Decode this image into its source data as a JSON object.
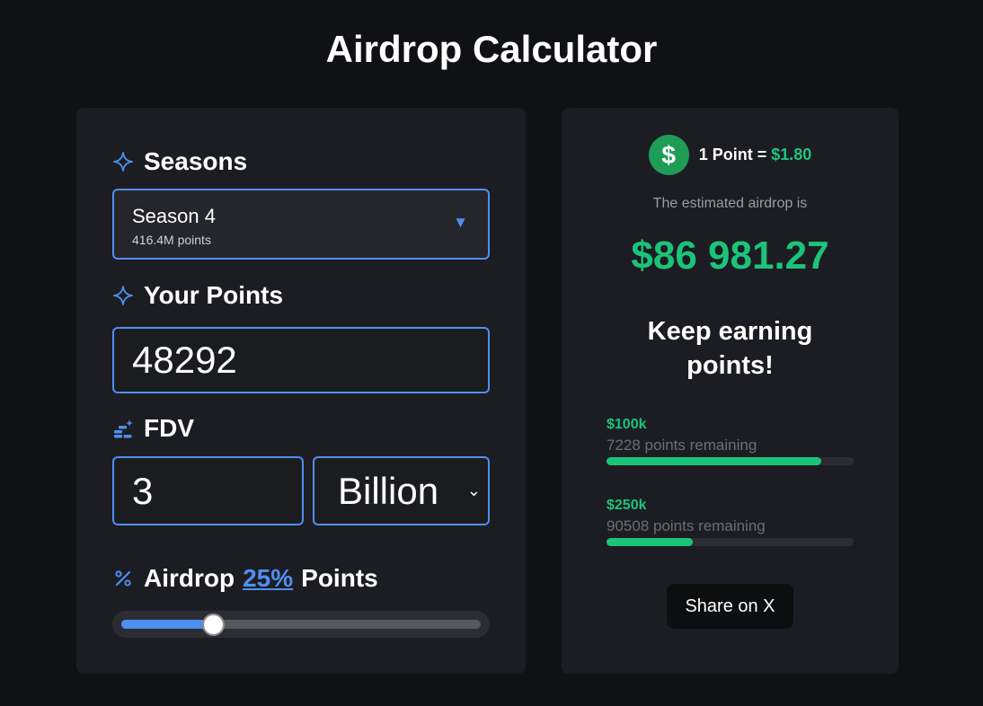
{
  "page": {
    "title": "Airdrop Calculator"
  },
  "calculator": {
    "seasons": {
      "label": "Seasons",
      "selected_name": "Season 4",
      "selected_points": "416.4M points"
    },
    "your_points": {
      "label": "Your Points",
      "value": "48292"
    },
    "fdv": {
      "label": "FDV",
      "value": "3",
      "unit": "Billion"
    },
    "airdrop": {
      "label_prefix": "Airdrop",
      "percent": "25%",
      "label_suffix": "Points",
      "percent_value": 25
    }
  },
  "result": {
    "currency_symbol": "$",
    "rate_label": "1 Point =",
    "rate_value": "$1.80",
    "estimate_label": "The estimated airdrop is",
    "estimate_value": "$86 981.27",
    "message": "Keep earning points!",
    "milestones": [
      {
        "amount": "$100k",
        "remaining": "7228 points remaining",
        "progress": 0.87
      },
      {
        "amount": "$250k",
        "remaining": "90508 points remaining",
        "progress": 0.35
      }
    ],
    "share_label": "Share on X"
  },
  "colors": {
    "accent_blue": "#4f8ff0",
    "accent_green": "#1cc47a",
    "card_bg": "#1c1d22",
    "page_bg": "#101114"
  },
  "icons": {
    "seasons": "sparkle-icon",
    "points": "sparkle-icon",
    "fdv": "coins-sparkle-icon",
    "airdrop": "percent-icon"
  }
}
